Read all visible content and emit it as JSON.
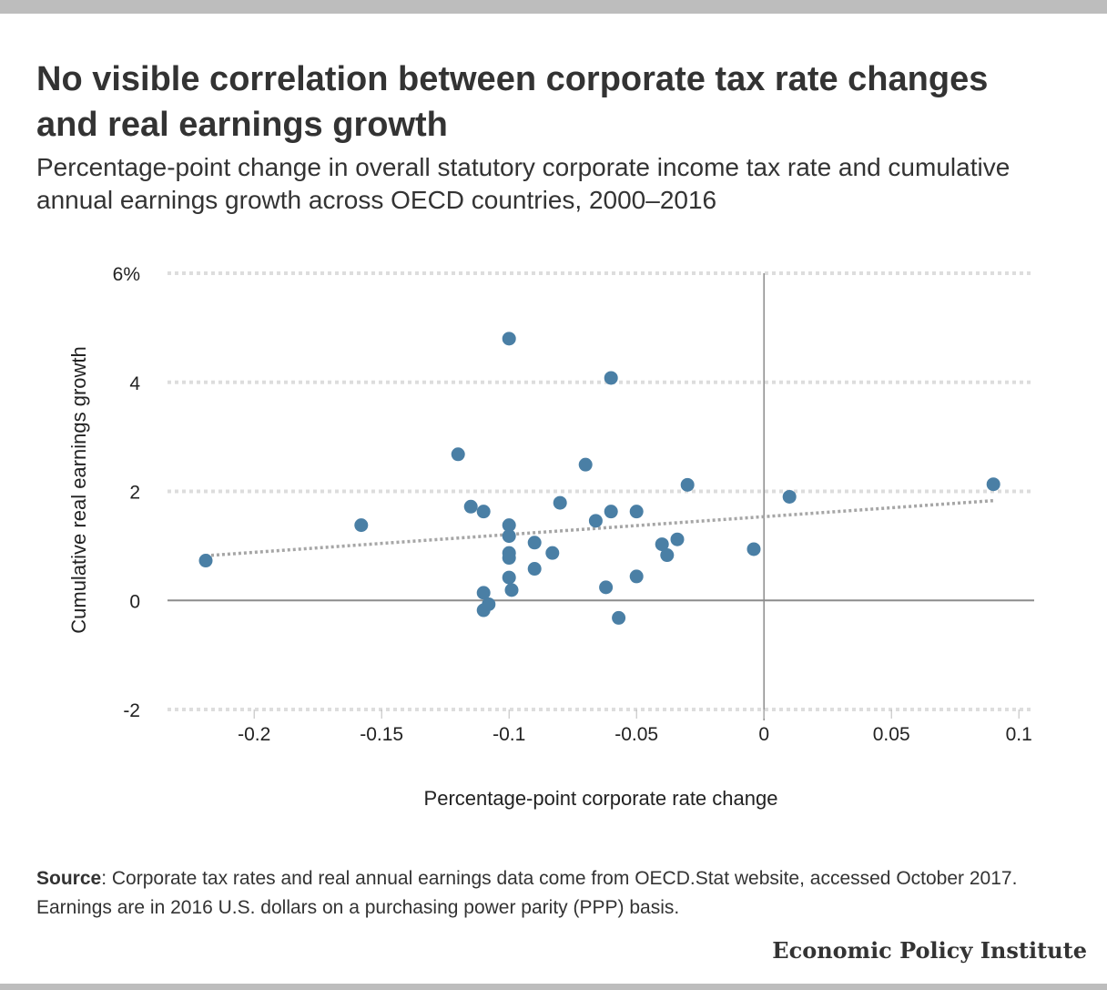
{
  "title": "No visible correlation between corporate tax rate changes and real earnings growth",
  "subtitle": "Percentage-point change in overall statutory corporate income tax rate and cumulative annual earnings growth across OECD countries, 2000–2016",
  "source": {
    "label": "Source",
    "text": ": Corporate tax rates and real annual earnings data come from OECD.Stat website, accessed October 2017. Earnings are in 2016 U.S. dollars on a purchasing power parity (PPP) basis."
  },
  "brand": "Economic Policy Institute",
  "colors": {
    "point": "#4a7fa5",
    "trendline": "#a6a6a6",
    "gridline": "#dddddd",
    "zero_line": "#8c8c8c"
  },
  "chart_data": {
    "type": "scatter",
    "xlabel": "Percentage-point corporate rate change",
    "ylabel": "Cumulative real earnings growth",
    "xlim": [
      -0.234,
      0.106
    ],
    "ylim": [
      -2,
      6
    ],
    "x_ticks": [
      -0.2,
      -0.15,
      -0.1,
      -0.05,
      0,
      0.05,
      0.1
    ],
    "x_tick_labels": [
      "-0.2",
      "-0.15",
      "-0.1",
      "-0.05",
      "0",
      "0.05",
      "0.1"
    ],
    "y_ticks": [
      -2,
      0,
      2,
      4,
      6
    ],
    "y_tick_labels": [
      "-2",
      "0",
      "2",
      "4",
      "6%"
    ],
    "grid": "horizontal dotted",
    "trendline": {
      "x": [
        -0.219,
        0.09
      ],
      "y": [
        0.82,
        1.83
      ],
      "style": "dotted"
    },
    "points": [
      {
        "x": -0.219,
        "y": 0.73
      },
      {
        "x": -0.158,
        "y": 1.38
      },
      {
        "x": -0.12,
        "y": 2.68
      },
      {
        "x": -0.115,
        "y": 1.72
      },
      {
        "x": -0.11,
        "y": 1.63
      },
      {
        "x": -0.11,
        "y": 0.14
      },
      {
        "x": -0.11,
        "y": -0.18
      },
      {
        "x": -0.108,
        "y": -0.07
      },
      {
        "x": -0.1,
        "y": 4.8
      },
      {
        "x": -0.1,
        "y": 1.38
      },
      {
        "x": -0.1,
        "y": 1.18
      },
      {
        "x": -0.1,
        "y": 0.87
      },
      {
        "x": -0.1,
        "y": 0.78
      },
      {
        "x": -0.1,
        "y": 0.42
      },
      {
        "x": -0.099,
        "y": 0.19
      },
      {
        "x": -0.09,
        "y": 1.06
      },
      {
        "x": -0.09,
        "y": 0.58
      },
      {
        "x": -0.083,
        "y": 0.87
      },
      {
        "x": -0.08,
        "y": 1.79
      },
      {
        "x": -0.07,
        "y": 2.49
      },
      {
        "x": -0.066,
        "y": 1.46
      },
      {
        "x": -0.062,
        "y": 0.24
      },
      {
        "x": -0.06,
        "y": 4.08
      },
      {
        "x": -0.06,
        "y": 1.63
      },
      {
        "x": -0.057,
        "y": -0.32
      },
      {
        "x": -0.05,
        "y": 1.63
      },
      {
        "x": -0.05,
        "y": 0.44
      },
      {
        "x": -0.04,
        "y": 1.03
      },
      {
        "x": -0.038,
        "y": 0.83
      },
      {
        "x": -0.034,
        "y": 1.12
      },
      {
        "x": -0.03,
        "y": 2.12
      },
      {
        "x": -0.004,
        "y": 0.94
      },
      {
        "x": 0.01,
        "y": 1.9
      },
      {
        "x": 0.09,
        "y": 2.13
      }
    ]
  }
}
